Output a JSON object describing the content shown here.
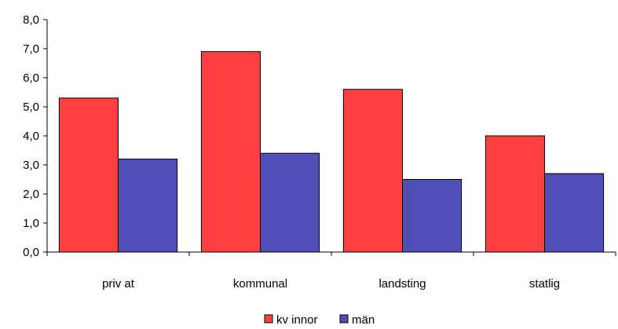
{
  "chart_data": {
    "type": "bar",
    "categories": [
      "priv at",
      "kommunal",
      "landsting",
      "statlig"
    ],
    "series": [
      {
        "name": "kv innor",
        "values": [
          5.3,
          6.9,
          5.6,
          4.0
        ],
        "color": "#ff4040"
      },
      {
        "name": "män",
        "values": [
          3.2,
          3.4,
          2.5,
          2.7
        ],
        "color": "#4f4fb5"
      }
    ],
    "ylim": [
      0,
      8
    ],
    "yticks": [
      "0,0",
      "1,0",
      "2,0",
      "3,0",
      "4,0",
      "5,0",
      "6,0",
      "7,0",
      "8,0"
    ],
    "grid": false,
    "legend_position": "bottom-center",
    "title": "",
    "xlabel": "",
    "ylabel": ""
  }
}
